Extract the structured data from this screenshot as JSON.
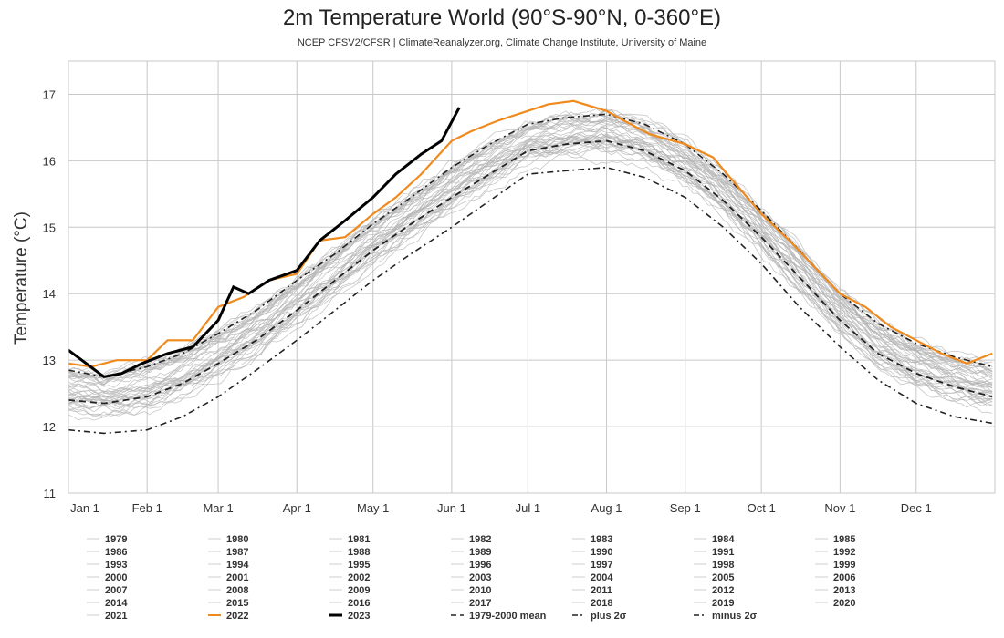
{
  "chart_data": {
    "type": "line",
    "title": "2m Temperature World (90°S-90°N, 0-360°E)",
    "subtitle": "NCEP CFSV2/CFSR | ClimateReanalyzer.org, Climate Change Institute, University of Maine",
    "xlabel": "",
    "ylabel": "Temperature (°C)",
    "ylim": [
      11,
      17.5
    ],
    "xlim_day": [
      1,
      366
    ],
    "y_ticks": [
      "11",
      "12",
      "13",
      "14",
      "15",
      "16",
      "17"
    ],
    "x_ticks": [
      {
        "label": "Jan 1",
        "day": 1
      },
      {
        "label": "Feb 1",
        "day": 32
      },
      {
        "label": "Mar 1",
        "day": 60
      },
      {
        "label": "Apr 1",
        "day": 91
      },
      {
        "label": "May 1",
        "day": 121
      },
      {
        "label": "Jun 1",
        "day": 152
      },
      {
        "label": "Jul 1",
        "day": 182
      },
      {
        "label": "Aug 1",
        "day": 213
      },
      {
        "label": "Sep 1",
        "day": 244
      },
      {
        "label": "Oct 1",
        "day": 274
      },
      {
        "label": "Nov 1",
        "day": 305
      },
      {
        "label": "Dec 1",
        "day": 335
      }
    ],
    "grid": true,
    "legend_position": "bottom",
    "x_unit": "day of year",
    "background_years": [
      "1979",
      "1980",
      "1981",
      "1982",
      "1983",
      "1984",
      "1985",
      "1986",
      "1987",
      "1988",
      "1989",
      "1990",
      "1991",
      "1992",
      "1993",
      "1994",
      "1995",
      "1996",
      "1997",
      "1998",
      "1999",
      "2000",
      "2001",
      "2002",
      "2003",
      "2004",
      "2005",
      "2006",
      "2007",
      "2008",
      "2009",
      "2010",
      "2011",
      "2012",
      "2013",
      "2014",
      "2015",
      "2016",
      "2017",
      "2018",
      "2019",
      "2020",
      "2021"
    ],
    "series": [
      {
        "name": "1979-2000 mean",
        "style": "dashed",
        "color": "#222222",
        "x": [
          1,
          15,
          32,
          46,
          60,
          75,
          91,
          106,
          121,
          136,
          152,
          167,
          182,
          197,
          213,
          228,
          244,
          259,
          274,
          289,
          305,
          320,
          335,
          350,
          365
        ],
        "y": [
          12.4,
          12.35,
          12.45,
          12.65,
          12.95,
          13.3,
          13.75,
          14.2,
          14.65,
          15.05,
          15.45,
          15.8,
          16.15,
          16.25,
          16.3,
          16.15,
          15.85,
          15.4,
          14.85,
          14.25,
          13.6,
          13.1,
          12.8,
          12.6,
          12.45
        ]
      },
      {
        "name": "plus 2σ",
        "style": "dash-dot",
        "color": "#222222",
        "x": [
          1,
          15,
          32,
          46,
          60,
          75,
          91,
          106,
          121,
          136,
          152,
          167,
          182,
          197,
          213,
          228,
          244,
          259,
          274,
          289,
          305,
          320,
          335,
          350,
          365
        ],
        "y": [
          12.85,
          12.75,
          12.9,
          13.1,
          13.4,
          13.75,
          14.2,
          14.6,
          15.05,
          15.45,
          15.9,
          16.25,
          16.55,
          16.65,
          16.7,
          16.55,
          16.25,
          15.8,
          15.25,
          14.65,
          14.0,
          13.55,
          13.25,
          13.05,
          12.9
        ]
      },
      {
        "name": "minus 2σ",
        "style": "dash-dot",
        "color": "#222222",
        "x": [
          1,
          15,
          32,
          46,
          60,
          75,
          91,
          106,
          121,
          136,
          152,
          167,
          182,
          197,
          213,
          228,
          244,
          259,
          274,
          289,
          305,
          320,
          335,
          350,
          365
        ],
        "y": [
          11.95,
          11.9,
          11.95,
          12.15,
          12.45,
          12.85,
          13.3,
          13.75,
          14.2,
          14.6,
          15.0,
          15.4,
          15.8,
          15.85,
          15.9,
          15.75,
          15.45,
          15.0,
          14.45,
          13.8,
          13.2,
          12.7,
          12.35,
          12.15,
          12.05
        ]
      },
      {
        "name": "2022",
        "style": "solid",
        "color": "#f08a1d",
        "x": [
          1,
          10,
          20,
          32,
          40,
          50,
          60,
          70,
          80,
          91,
          100,
          110,
          121,
          130,
          140,
          152,
          160,
          170,
          182,
          190,
          200,
          213,
          220,
          230,
          244,
          255,
          265,
          274,
          285,
          295,
          305,
          315,
          325,
          335,
          345,
          355,
          365
        ],
        "y": [
          12.95,
          12.9,
          13.0,
          13.0,
          13.3,
          13.3,
          13.8,
          13.95,
          14.2,
          14.3,
          14.8,
          14.85,
          15.2,
          15.45,
          15.8,
          16.3,
          16.45,
          16.6,
          16.75,
          16.85,
          16.9,
          16.75,
          16.6,
          16.4,
          16.25,
          16.05,
          15.6,
          15.2,
          14.8,
          14.4,
          14.0,
          13.8,
          13.5,
          13.3,
          13.1,
          12.95,
          13.1
        ]
      },
      {
        "name": "2023",
        "style": "solid",
        "color": "#000000",
        "x": [
          1,
          8,
          15,
          22,
          30,
          40,
          50,
          60,
          66,
          72,
          80,
          91,
          100,
          110,
          121,
          130,
          140,
          148,
          155
        ],
        "y": [
          13.15,
          12.95,
          12.75,
          12.8,
          12.95,
          13.1,
          13.2,
          13.6,
          14.1,
          14.0,
          14.2,
          14.35,
          14.8,
          15.1,
          15.45,
          15.8,
          16.1,
          16.3,
          16.8
        ]
      }
    ]
  }
}
